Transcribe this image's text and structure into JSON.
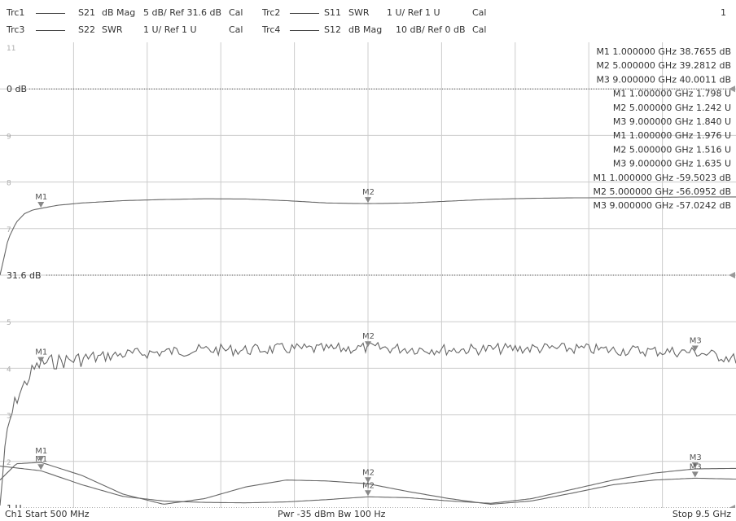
{
  "header": {
    "channel_number": "1",
    "traces": [
      {
        "name": "Trc1",
        "param": "S21",
        "format": "dB Mag",
        "scale": "5 dB/ Ref 31.6 dB",
        "cal": "Cal"
      },
      {
        "name": "Trc2",
        "param": "S11",
        "format": "SWR",
        "scale": "1 U/ Ref 1 U",
        "cal": "Cal"
      },
      {
        "name": "Trc3",
        "param": "S22",
        "format": "SWR",
        "scale": "1 U/ Ref 1 U",
        "cal": "Cal"
      },
      {
        "name": "Trc4",
        "param": "S12",
        "format": "dB Mag",
        "scale": "10 dB/ Ref 0 dB",
        "cal": "Cal"
      }
    ]
  },
  "footer": {
    "start": "Ch1  Start  500 MHz",
    "center": "Pwr  -35 dBm  Bw  100 Hz",
    "stop": "Stop  9.5 GHz"
  },
  "colors": {
    "trace": "#666666",
    "grid": "#cccccc",
    "ref": "#555555",
    "text": "#333333"
  },
  "chart_data": {
    "type": "line",
    "x_range_ghz": [
      0.5,
      9.5
    ],
    "grid": true,
    "y_axis_labels": [
      "11",
      "0 dB",
      "9",
      "8",
      "7",
      "31.6 dB",
      "5",
      "4",
      "3",
      "2",
      "1 U"
    ],
    "reference_labels": [
      "0 dB",
      "31.6 dB",
      "1 U"
    ],
    "marker_table": [
      {
        "marker": "M1",
        "freq": "1.000000 GHz",
        "value": "38.7655 dB"
      },
      {
        "marker": "M2",
        "freq": "5.000000 GHz",
        "value": "39.2812 dB"
      },
      {
        "marker": "M3",
        "freq": "9.000000 GHz",
        "value": "40.0011 dB"
      },
      {
        "marker": "M1",
        "freq": "1.000000 GHz",
        "value": "1.798 U"
      },
      {
        "marker": "M2",
        "freq": "5.000000 GHz",
        "value": "1.242 U"
      },
      {
        "marker": "M3",
        "freq": "9.000000 GHz",
        "value": "1.840 U"
      },
      {
        "marker": "M1",
        "freq": "1.000000 GHz",
        "value": "1.976 U"
      },
      {
        "marker": "M2",
        "freq": "5.000000 GHz",
        "value": "1.516 U"
      },
      {
        "marker": "M3",
        "freq": "9.000000 GHz",
        "value": "1.635 U"
      },
      {
        "marker": "M1",
        "freq": "1.000000 GHz",
        "value": "-59.5023 dB"
      },
      {
        "marker": "M2",
        "freq": "5.000000 GHz",
        "value": "-56.0952 dB"
      },
      {
        "marker": "M3",
        "freq": "9.000000 GHz",
        "value": "-57.0242 dB"
      }
    ],
    "series": [
      {
        "name": "Trc1",
        "x": [
          0.5,
          0.55,
          0.6,
          0.7,
          0.8,
          0.9,
          1.0,
          1.2,
          1.5,
          2.0,
          2.5,
          3.0,
          3.5,
          4.0,
          4.5,
          5.0,
          5.5,
          6.0,
          6.5,
          7.0,
          7.5,
          8.0,
          8.5,
          9.0,
          9.5
        ],
        "y": [
          31.6,
          33.5,
          35.5,
          37.3,
          38.2,
          38.6,
          38.77,
          39.1,
          39.35,
          39.6,
          39.72,
          39.8,
          39.78,
          39.6,
          39.35,
          39.28,
          39.35,
          39.55,
          39.75,
          39.85,
          39.9,
          39.92,
          39.95,
          40.0,
          40.0
        ]
      },
      {
        "name": "Trc2",
        "x": [
          0.5,
          1.0,
          1.5,
          2.0,
          2.5,
          3.0,
          3.5,
          4.0,
          4.5,
          5.0,
          5.5,
          6.0,
          6.5,
          7.0,
          7.5,
          8.0,
          8.5,
          9.0,
          9.5
        ],
        "y": [
          1.9,
          1.8,
          1.5,
          1.25,
          1.15,
          1.12,
          1.11,
          1.13,
          1.18,
          1.24,
          1.22,
          1.15,
          1.1,
          1.2,
          1.4,
          1.6,
          1.75,
          1.84,
          1.85
        ]
      },
      {
        "name": "Trc3",
        "x": [
          0.5,
          0.7,
          1.0,
          1.5,
          2.0,
          2.5,
          3.0,
          3.5,
          4.0,
          4.5,
          5.0,
          5.5,
          6.0,
          6.5,
          7.0,
          7.5,
          8.0,
          8.5,
          9.0,
          9.5
        ],
        "y": [
          1.6,
          1.95,
          1.98,
          1.7,
          1.3,
          1.08,
          1.2,
          1.45,
          1.6,
          1.58,
          1.52,
          1.35,
          1.2,
          1.08,
          1.15,
          1.32,
          1.5,
          1.6,
          1.64,
          1.62
        ]
      },
      {
        "name": "Trc4",
        "x": [
          0.5,
          0.55,
          0.6,
          0.7,
          0.8,
          0.9,
          1.0,
          1.2,
          1.5,
          2.0,
          2.5,
          3.0,
          3.5,
          4.0,
          4.5,
          5.0,
          5.5,
          6.0,
          6.5,
          7.0,
          7.5,
          8.0,
          8.5,
          9.0,
          9.5
        ],
        "y": [
          -90,
          -80,
          -73,
          -67,
          -64,
          -61,
          -59.5,
          -59,
          -58.5,
          -57.5,
          -57,
          -56.5,
          -56.6,
          -56.3,
          -56.4,
          -56.1,
          -56.3,
          -56.5,
          -56.4,
          -56.2,
          -56.3,
          -56.6,
          -56.8,
          -57.02,
          -58.5
        ]
      }
    ],
    "markers": [
      {
        "trace": "Trc1",
        "labels": [
          "M1",
          "M2"
        ]
      },
      {
        "trace": "Trc4",
        "labels": [
          "M1",
          "M2",
          "M3"
        ]
      },
      {
        "trace": "Trc2",
        "labels": [
          "M1",
          "M2",
          "M3"
        ]
      },
      {
        "trace": "Trc3",
        "labels": [
          "M1",
          "M2",
          "M3"
        ]
      }
    ]
  }
}
